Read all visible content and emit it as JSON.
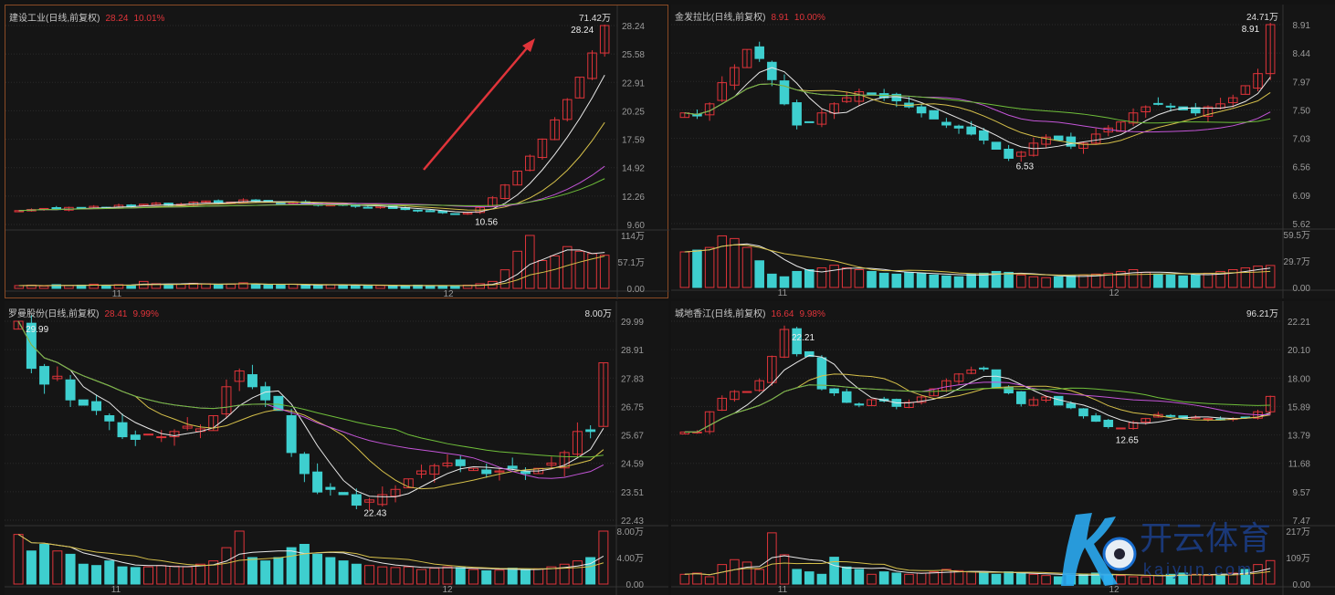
{
  "panels": [
    {
      "name": "建设工业",
      "period": "(日线,前复权)",
      "price": "28.24",
      "change": "10.01%",
      "vol_label": "71.42万",
      "active": true,
      "price_axis": [
        "28.24",
        "25.58",
        "22.91",
        "20.25",
        "17.59",
        "14.92",
        "12.26",
        "9.60"
      ],
      "range": [
        9.6,
        28.24
      ],
      "vol_axis": [
        "114万",
        "57.1万",
        "0.00"
      ],
      "vol_max": 114,
      "dates": [
        "11",
        "12"
      ],
      "high_label": "28.24",
      "low_label": "10.56",
      "low_idx": 36,
      "arrow": true,
      "closes": [
        10.9,
        11.0,
        11.1,
        11.0,
        11.2,
        11.1,
        11.3,
        11.2,
        11.4,
        11.3,
        11.5,
        11.6,
        11.4,
        11.5,
        11.7,
        11.8,
        11.6,
        11.7,
        11.9,
        11.8,
        11.7,
        11.6,
        11.7,
        11.5,
        11.4,
        11.5,
        11.4,
        11.3,
        11.2,
        11.3,
        11.1,
        11.0,
        10.9,
        10.8,
        10.7,
        10.6,
        10.7,
        11.2,
        12.1,
        13.3,
        14.6,
        16.0,
        17.6,
        19.4,
        21.3,
        23.4,
        25.67,
        28.24
      ],
      "volumes": [
        6,
        7,
        5,
        8,
        6,
        7,
        9,
        6,
        8,
        7,
        15,
        10,
        8,
        9,
        11,
        10,
        8,
        9,
        12,
        8,
        7,
        8,
        9,
        7,
        6,
        8,
        7,
        6,
        7,
        6,
        5,
        6,
        7,
        6,
        5,
        6,
        7,
        10,
        15,
        40,
        80,
        114,
        60,
        70,
        90,
        80,
        75,
        71.42
      ]
    },
    {
      "name": "金发拉比",
      "period": "(日线,前复权)",
      "price": "8.91",
      "change": "10.00%",
      "vol_label": "24.71万",
      "active": false,
      "price_axis": [
        "8.91",
        "8.44",
        "7.97",
        "7.50",
        "7.03",
        "6.56",
        "6.09",
        "5.62"
      ],
      "range": [
        5.62,
        8.91
      ],
      "vol_axis": [
        "59.5万",
        "29.7万",
        "0.00"
      ],
      "vol_max": 59.5,
      "dates": [
        "11",
        "12"
      ],
      "high_label": "8.91",
      "low_label": "6.53",
      "low_idx": 26,
      "arrow": false,
      "closes": [
        7.45,
        7.4,
        7.6,
        7.95,
        8.2,
        8.5,
        8.35,
        8.0,
        7.6,
        7.25,
        7.3,
        7.45,
        7.6,
        7.7,
        7.8,
        7.75,
        7.7,
        7.65,
        7.55,
        7.45,
        7.35,
        7.25,
        7.2,
        7.1,
        7.0,
        6.85,
        6.7,
        6.8,
        6.95,
        7.05,
        7.0,
        6.9,
        6.95,
        7.1,
        7.2,
        7.3,
        7.45,
        7.55,
        7.6,
        7.55,
        7.5,
        7.45,
        7.55,
        7.6,
        7.7,
        7.9,
        8.1,
        8.91
      ],
      "volumes": [
        40,
        42,
        45,
        58,
        55,
        45,
        30,
        15,
        12,
        18,
        20,
        22,
        25,
        22,
        20,
        18,
        16,
        15,
        17,
        16,
        14,
        13,
        12,
        15,
        16,
        18,
        17,
        14,
        12,
        11,
        12,
        13,
        14,
        15,
        16,
        18,
        20,
        17,
        15,
        14,
        13,
        14,
        16,
        18,
        20,
        22,
        24,
        24.71
      ]
    },
    {
      "name": "罗曼股份",
      "period": "(日线,前复权)",
      "price": "28.41",
      "change": "9.99%",
      "vol_label": "8.00万",
      "active": false,
      "price_axis": [
        "29.99",
        "28.91",
        "27.83",
        "26.75",
        "25.67",
        "24.59",
        "23.51",
        "22.43"
      ],
      "range": [
        22.43,
        29.99
      ],
      "vol_axis": [
        "8.00万",
        "4.00万",
        "0.00"
      ],
      "vol_max": 8,
      "dates": [
        "11",
        "12"
      ],
      "high_label": "29.99",
      "low_label": "22.43",
      "low_idx": 26,
      "arrow": false,
      "closes": [
        29.99,
        28.2,
        27.6,
        27.9,
        27.0,
        26.8,
        26.6,
        26.2,
        25.6,
        25.5,
        25.7,
        25.6,
        25.8,
        26.0,
        25.9,
        26.4,
        27.5,
        28.1,
        27.5,
        27.0,
        26.6,
        25.0,
        24.2,
        23.5,
        23.6,
        23.4,
        23.0,
        23.2,
        23.4,
        23.6,
        24.0,
        24.3,
        24.5,
        24.6,
        24.5,
        24.4,
        24.2,
        24.3,
        24.4,
        24.2,
        24.4,
        24.6,
        25.0,
        25.8,
        25.8,
        28.41
      ],
      "volumes": [
        7.5,
        5,
        6,
        5,
        4.5,
        3,
        2.8,
        3.5,
        2.6,
        2.5,
        2.6,
        2.8,
        2.7,
        2.6,
        3,
        3.5,
        5.5,
        8,
        4,
        3.5,
        4,
        5.5,
        6,
        4.5,
        4,
        3.5,
        3,
        2.8,
        2.6,
        2.5,
        2.6,
        2.2,
        2.4,
        2.6,
        2.5,
        2.2,
        2,
        2.1,
        2.4,
        2.2,
        2.3,
        2.6,
        3,
        3.5,
        4,
        8.0
      ]
    },
    {
      "name": "城地香江",
      "period": "(日线,前复权)",
      "price": "16.64",
      "change": "9.98%",
      "vol_label": "96.21万",
      "active": false,
      "price_axis": [
        "22.21",
        "20.10",
        "18.00",
        "15.89",
        "13.79",
        "11.68",
        "9.57",
        "7.47"
      ],
      "range": [
        7.47,
        22.21
      ],
      "vol_axis": [
        "217万",
        "109万",
        "0.00"
      ],
      "vol_max": 217,
      "dates": [
        "11",
        "12"
      ],
      "high_label": "22.21",
      "low_label": "12.65",
      "low_idx": 34,
      "arrow": false,
      "closes": [
        14.0,
        14.0,
        15.5,
        16.5,
        17.0,
        17.0,
        17.8,
        19.6,
        21.6,
        19.8,
        19.6,
        17.2,
        16.9,
        16.2,
        16.0,
        16.4,
        16.3,
        15.9,
        16.2,
        16.6,
        17.2,
        17.8,
        18.3,
        18.6,
        18.7,
        17.3,
        16.9,
        16.1,
        16.4,
        16.6,
        16.0,
        15.8,
        15.2,
        14.8,
        14.4,
        14.3,
        14.7,
        15.0,
        15.3,
        15.2,
        15.0,
        15.1,
        15.0,
        14.9,
        15.0,
        15.1,
        15.5,
        16.64
      ],
      "volumes": [
        40,
        45,
        30,
        80,
        100,
        90,
        60,
        210,
        120,
        60,
        50,
        40,
        110,
        70,
        60,
        40,
        50,
        45,
        40,
        45,
        50,
        60,
        55,
        50,
        45,
        40,
        50,
        45,
        40,
        35,
        30,
        35,
        40,
        45,
        40,
        35,
        30,
        30,
        35,
        40,
        45,
        40,
        35,
        40,
        45,
        60,
        80,
        96.21
      ]
    }
  ],
  "colors": {
    "up": "#e0343a",
    "down": "#3ecfcf",
    "ma5": "#e8e8e8",
    "ma10": "#d6c04a",
    "ma20": "#c455d8",
    "ma30": "#6fbf3a"
  },
  "watermark": {
    "brand": "开云体育",
    "domain": "kaiyun.com"
  }
}
